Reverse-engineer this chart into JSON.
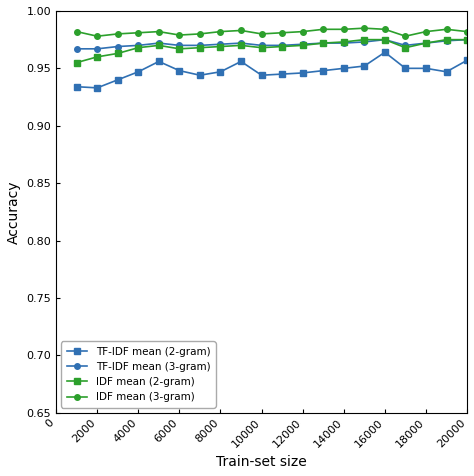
{
  "x": [
    1000,
    2000,
    3000,
    4000,
    5000,
    6000,
    7000,
    8000,
    9000,
    10000,
    11000,
    12000,
    13000,
    14000,
    15000,
    16000,
    17000,
    18000,
    19000,
    20000
  ],
  "tfidf_2gram": [
    0.934,
    0.933,
    0.94,
    0.947,
    0.956,
    0.948,
    0.944,
    0.947,
    0.956,
    0.944,
    0.945,
    0.946,
    0.948,
    0.95,
    0.952,
    0.964,
    0.95,
    0.95,
    0.947,
    0.957
  ],
  "tfidf_3gram": [
    0.967,
    0.967,
    0.969,
    0.97,
    0.972,
    0.97,
    0.97,
    0.971,
    0.972,
    0.97,
    0.97,
    0.971,
    0.972,
    0.972,
    0.973,
    0.975,
    0.97,
    0.972,
    0.974,
    0.975
  ],
  "idf_2gram": [
    0.955,
    0.96,
    0.963,
    0.968,
    0.97,
    0.967,
    0.968,
    0.969,
    0.97,
    0.968,
    0.969,
    0.97,
    0.972,
    0.973,
    0.975,
    0.975,
    0.968,
    0.972,
    0.975,
    0.975
  ],
  "idf_3gram": [
    0.982,
    0.978,
    0.98,
    0.981,
    0.982,
    0.979,
    0.98,
    0.982,
    0.983,
    0.98,
    0.981,
    0.982,
    0.984,
    0.984,
    0.985,
    0.984,
    0.978,
    0.982,
    0.984,
    0.982
  ],
  "tfidf_2gram_color": "#3070b3",
  "tfidf_3gram_color": "#3070b3",
  "idf_2gram_color": "#2ca02c",
  "idf_3gram_color": "#2ca02c",
  "xlabel": "Train-set size",
  "ylabel": "Accuracy",
  "ylim": [
    0.65,
    1.0
  ],
  "xlim": [
    0,
    20000
  ],
  "xticks": [
    0,
    2000,
    4000,
    6000,
    8000,
    10000,
    12000,
    14000,
    16000,
    18000,
    20000
  ],
  "xtick_labels": [
    "0",
    "2000",
    "4000",
    "6000",
    "8000",
    "10000",
    "12000",
    "14000",
    "16000",
    "18000",
    "20000"
  ],
  "legend_labels": [
    "TF-IDF mean (2-gram)",
    "TF-IDF mean (3-gram)",
    "IDF mean (2-gram)",
    "IDF mean (3-gram)"
  ]
}
